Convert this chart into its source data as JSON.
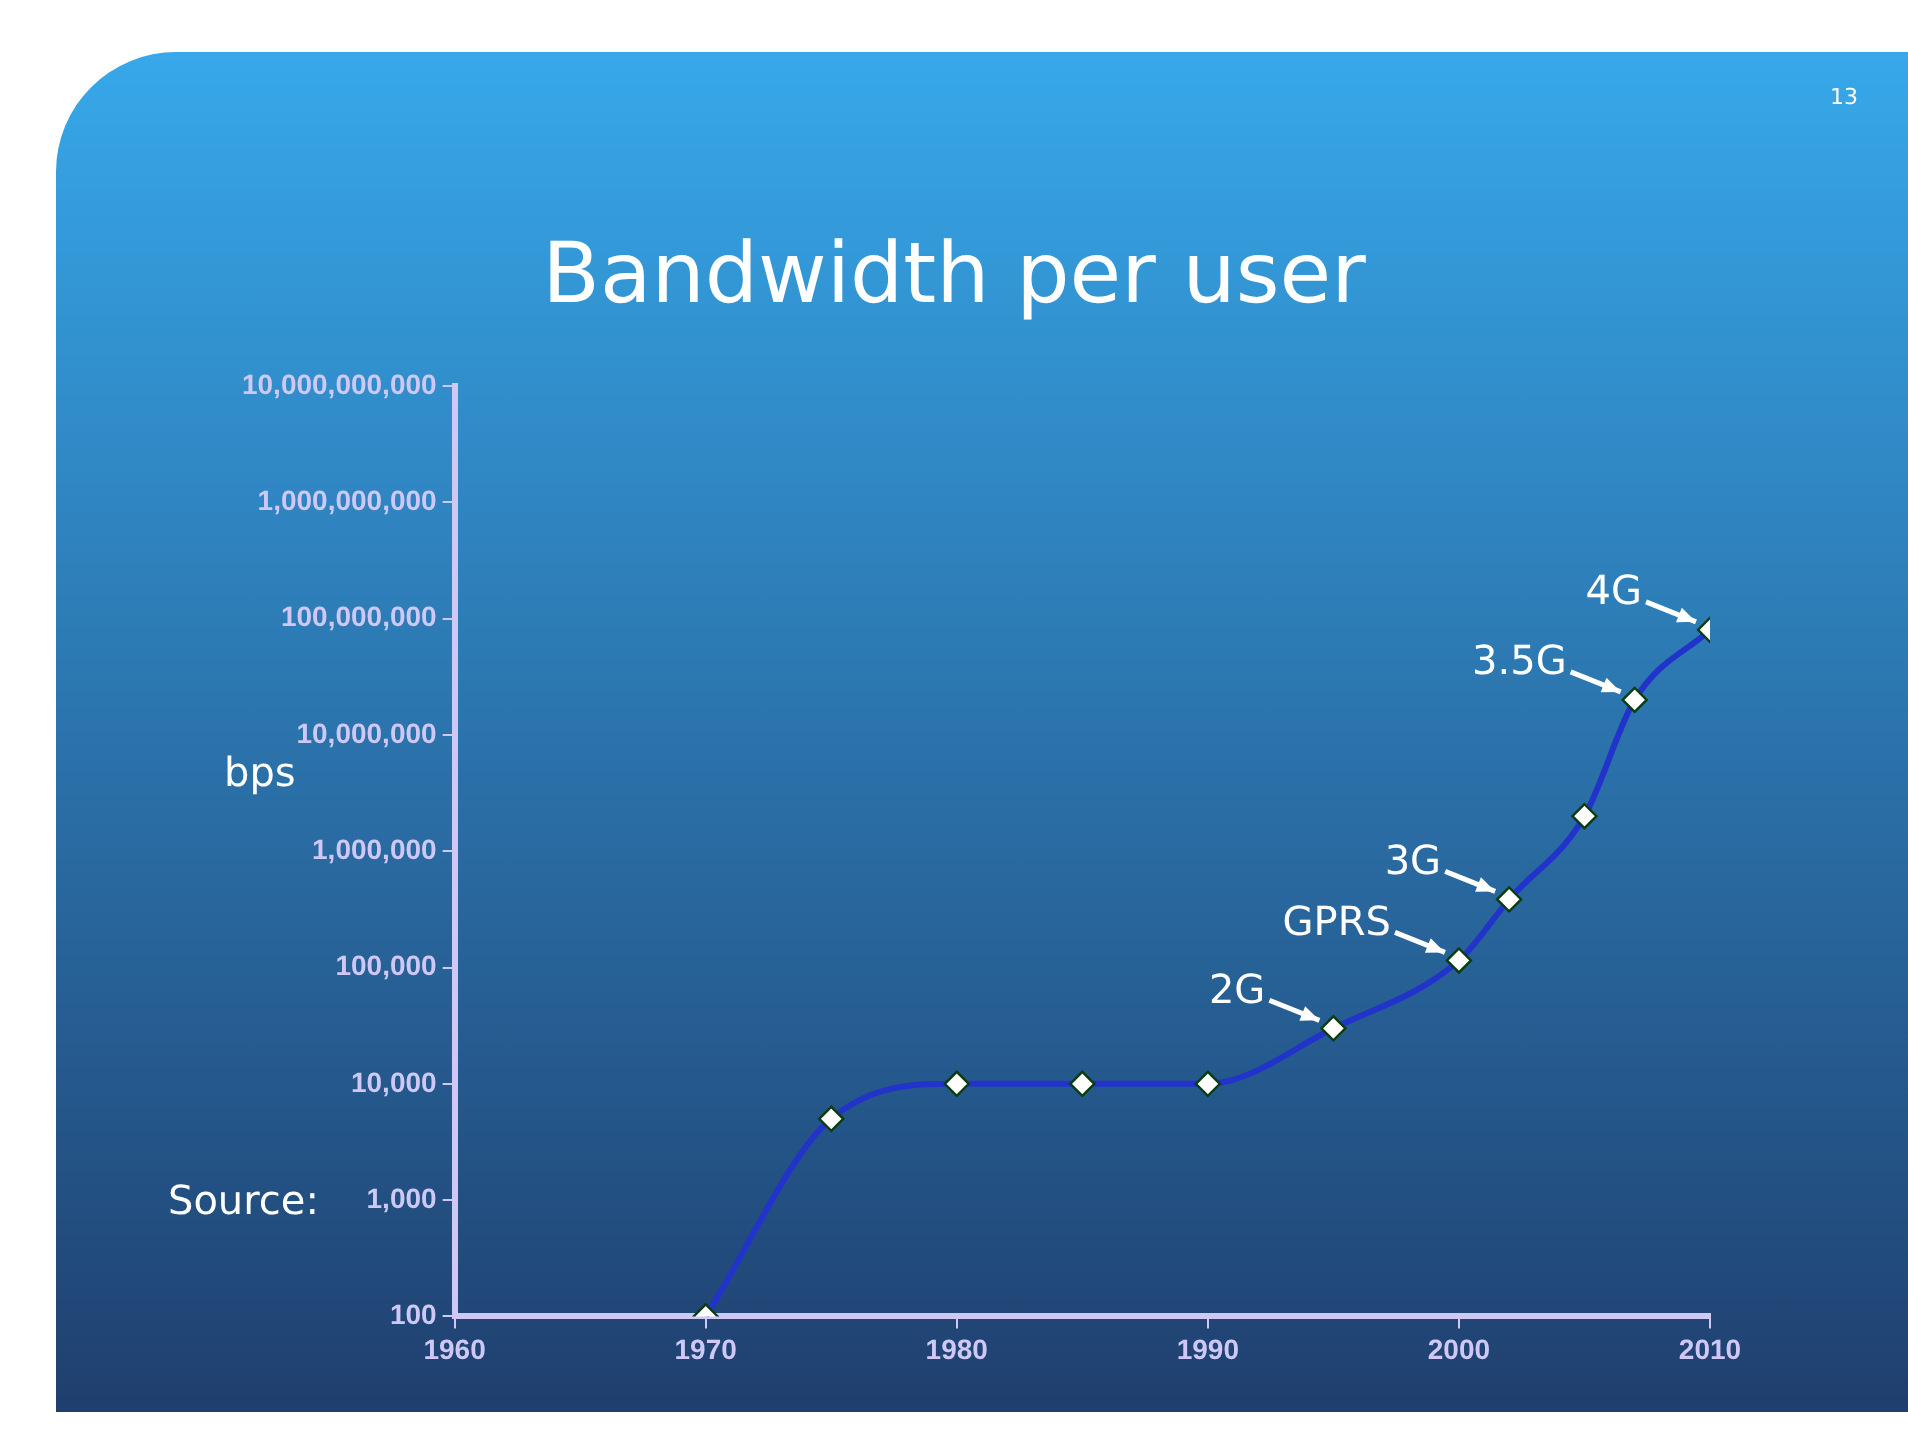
{
  "chart_data": {
    "type": "line",
    "title": "Bandwidth per user",
    "ylabel": "bps",
    "x": [
      1970,
      1975,
      1980,
      1985,
      1990,
      1995,
      2000,
      2002,
      2005,
      2007,
      2010
    ],
    "series": [
      {
        "color": "#2233cc",
        "values": [
          100,
          5000,
          10000,
          10000,
          10000,
          30000,
          115000,
          385000,
          2000000,
          20000000,
          80000000
        ]
      }
    ],
    "xlim": [
      1960,
      2010
    ],
    "xticks": [
      1960,
      1970,
      1980,
      1990,
      2000,
      2010
    ],
    "ylim": [
      100,
      10000000000
    ],
    "yticks": [
      100,
      {
        "value": 1000,
        "label": "1,000"
      },
      {
        "value": 10000,
        "label": "10,000"
      },
      {
        "value": 100000,
        "label": "100,000"
      },
      {
        "value": 1000000,
        "label": "1,000,000"
      },
      {
        "value": 10000000,
        "label": "10,000,000"
      },
      {
        "value": 100000000,
        "label": "100,000,000"
      },
      {
        "value": 1000000000,
        "label": "1,000,000,000"
      },
      {
        "value": 10000000000,
        "label": "10,000,000,000"
      }
    ],
    "log": true,
    "grid": false,
    "legend": false,
    "marker": "diamond",
    "line_style": "solid",
    "annotations": [
      {
        "text": "2G",
        "x": 1995,
        "y": 30000
      },
      {
        "text": "GPRS",
        "x": 2000,
        "y": 115000
      },
      {
        "text": "3G",
        "x": 2002,
        "y": 385000
      },
      {
        "text": "3.5G",
        "x": 2007,
        "y": 20000000
      },
      {
        "text": "4G",
        "x": 2010,
        "y": 80000000
      },
      "Source:",
      "13"
    ]
  }
}
